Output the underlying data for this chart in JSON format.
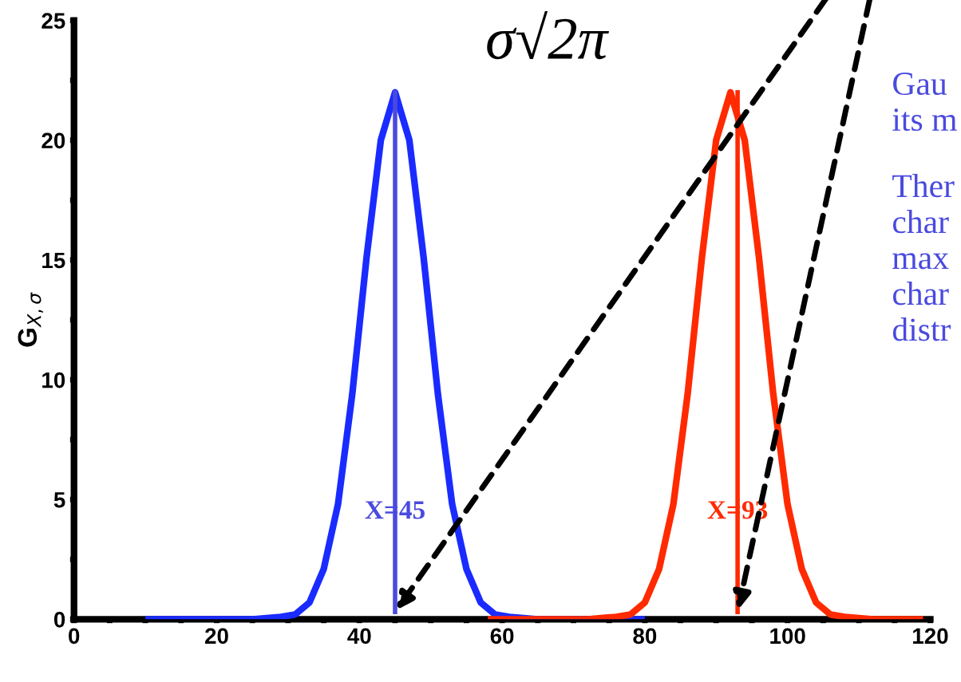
{
  "chart_data": {
    "type": "line",
    "ylabel": "G$_{X,σ}$",
    "series": [
      {
        "color": "#1a2bff",
        "x": [
          10,
          25,
          29,
          31,
          33,
          35,
          37,
          39,
          41,
          43,
          45,
          47,
          49,
          51,
          53,
          55,
          57,
          59,
          61,
          65,
          80
        ],
        "values": [
          0,
          0,
          0.1,
          0.2,
          0.7,
          2.1,
          4.8,
          9.4,
          15.1,
          20,
          22,
          20,
          15.1,
          9.4,
          4.8,
          2.1,
          0.7,
          0.2,
          0.1,
          0,
          0
        ]
      },
      {
        "color": "#ff2a00",
        "x": [
          58,
          72,
          76,
          78,
          80,
          82,
          84,
          86,
          88,
          90,
          92,
          94,
          96,
          98,
          100,
          102,
          104,
          106,
          108,
          112,
          119
        ],
        "values": [
          0,
          0,
          0.1,
          0.2,
          0.7,
          2.1,
          4.8,
          9.4,
          15.1,
          20,
          22,
          20,
          15.1,
          9.4,
          4.8,
          2.1,
          0.7,
          0.2,
          0.1,
          0,
          0
        ]
      }
    ],
    "xlim": [
      0,
      120
    ],
    "ylim": [
      0,
      25
    ],
    "xticks": [
      0,
      {
        "value": 5,
        "label": null
      },
      {
        "value": 10,
        "label": null
      },
      {
        "value": 15,
        "label": null
      },
      20,
      {
        "value": 25,
        "label": null
      },
      {
        "value": 30,
        "label": null
      },
      {
        "value": 35,
        "label": null
      },
      40,
      {
        "value": 45,
        "label": null
      },
      {
        "value": 50,
        "label": null
      },
      {
        "value": 55,
        "label": null
      },
      60,
      {
        "value": 65,
        "label": null
      },
      {
        "value": 70,
        "label": null
      },
      {
        "value": 75,
        "label": null
      },
      80,
      {
        "value": 85,
        "label": null
      },
      {
        "value": 90,
        "label": null
      },
      {
        "value": 95,
        "label": null
      },
      100,
      {
        "value": 105,
        "label": null
      },
      {
        "value": 110,
        "label": null
      },
      {
        "value": 115,
        "label": null
      },
      120
    ],
    "yticks": [
      0,
      {
        "value": 2.5,
        "label": null
      },
      5,
      {
        "value": 7.5,
        "label": null
      },
      10,
      {
        "value": 12.5,
        "label": null
      },
      15,
      {
        "value": 17.5,
        "label": null
      },
      20,
      {
        "value": 22.5,
        "label": null
      },
      25
    ],
    "ref_lines": [
      {
        "axis": "x",
        "value": 45,
        "label": "X=45",
        "color": "#4a4adf"
      },
      {
        "axis": "x",
        "value": 93,
        "label": "X=93",
        "color": "#ff2a00"
      }
    ],
    "annotations": [
      "σ√2π",
      "Gau\nits m",
      "Ther\nchar\nmax\nchar\ndistr"
    ],
    "grid": false,
    "marker": "none",
    "line_style": "solid"
  }
}
